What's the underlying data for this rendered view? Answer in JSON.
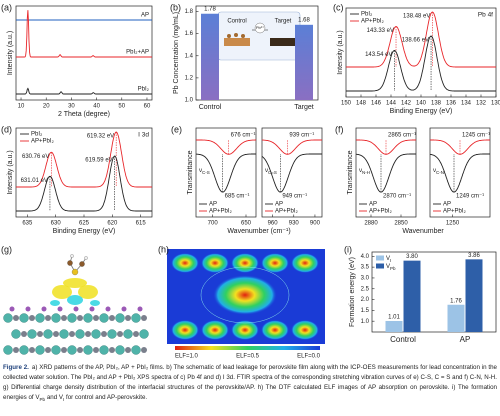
{
  "panels": {
    "a": {
      "letter": "(a)",
      "type": "xrd",
      "xlabel": "2 Theta (degree)",
      "ylabel": "Intensity (a.u.)",
      "xlim": [
        8,
        62
      ],
      "xticks": [
        10,
        20,
        30,
        40,
        50,
        60
      ],
      "traces": [
        {
          "name": "AP",
          "color": "#1f5fbf",
          "peaks": [],
          "heights": []
        },
        {
          "name": "PbI₂+AP",
          "color": "#e8262a",
          "peaks": [
            12.7,
            25.5,
            38.6
          ],
          "heights": [
            100,
            5,
            3
          ]
        },
        {
          "name": "PbI₂",
          "color": "#222222",
          "peaks": [
            12.7,
            25.9,
            38.7
          ],
          "heights": [
            12,
            5,
            3
          ]
        }
      ]
    },
    "b": {
      "letter": "(b)",
      "type": "bar",
      "ylabel": "Pb Concentration (mg/mL)",
      "categories": [
        "Control",
        "Target"
      ],
      "values": [
        1.78,
        1.68
      ],
      "ylim": [
        1.0,
        1.85
      ],
      "yticks": [
        {
          "value": 1,
          "label": "1.0"
        },
        1.2,
        1.4,
        1.6,
        1.8
      ],
      "inset": {
        "left": "Control",
        "ion": "Pb²⁺",
        "right": "Target"
      }
    },
    "c": {
      "letter": "(c)",
      "type": "xps",
      "tag": "Pb 4f",
      "xlabel": "Binding Energy (eV)",
      "ylabel": "Intensity (a.u.)",
      "xlim": [
        150,
        130
      ],
      "xticks": [
        150,
        148,
        146,
        144,
        142,
        140,
        138,
        136,
        134,
        132,
        130
      ],
      "traces": [
        {
          "name": "AP+PbI₂",
          "color": "#e8262a",
          "peaks": [
            143.33,
            138.48
          ],
          "heights": [
            70,
            95
          ],
          "peak_labels": [
            "143.33 eV",
            "138.48 eV"
          ]
        },
        {
          "name": "PbI₂",
          "color": "#222222",
          "peaks": [
            143.54,
            138.66
          ],
          "heights": [
            70,
            95
          ],
          "peak_labels": [
            "143.54 eV",
            "138.66 eV"
          ]
        }
      ]
    },
    "d": {
      "letter": "(d)",
      "type": "xps",
      "tag": "I 3d",
      "xlabel": "Binding Energy (eV)",
      "ylabel": "Intensity (a.u.)",
      "xlim": [
        637,
        613
      ],
      "xticks": [
        635,
        630,
        625,
        620,
        615
      ],
      "traces": [
        {
          "name": "AP+PbI₂",
          "color": "#e8262a",
          "peaks": [
            630.76,
            619.32
          ],
          "heights": [
            60,
            95
          ],
          "peak_labels": [
            "630.76 eV",
            "619.32 eV"
          ]
        },
        {
          "name": "PbI₂",
          "color": "#222222",
          "peaks": [
            631.01,
            619.59
          ],
          "heights": [
            60,
            95
          ],
          "peak_labels": [
            "631.01 eV",
            "619.59 eV"
          ]
        }
      ]
    },
    "e": {
      "letter": "(e)",
      "type": "ftir",
      "ylabel": "Transmittance",
      "xlabel": "Wavenumber (cm⁻¹)",
      "plots": [
        {
          "xlim": [
            725,
            635
          ],
          "xticks": [
            700,
            650
          ],
          "mode": "ν",
          "mode_sub": "C-S",
          "traces": [
            {
              "name": "AP+PbI₂",
              "color": "#e8262a",
              "peaks": [
                676
              ],
              "heights": [
                15
              ],
              "peak_labels": [
                "676 cm⁻¹"
              ]
            },
            {
              "name": "AP",
              "color": "#222222",
              "peaks": [
                685
              ],
              "heights": [
                40
              ],
              "peak_labels": [
                "685 cm⁻¹"
              ]
            }
          ]
        },
        {
          "xlim": [
            975,
            890
          ],
          "xticks": [
            960,
            930,
            900
          ],
          "mode": "ν",
          "mode_sub": "C=S",
          "traces": [
            {
              "name": "AP+PbI₂",
              "color": "#e8262a",
              "peaks": [
                939
              ],
              "heights": [
                15
              ],
              "peak_labels": [
                "939 cm⁻¹"
              ]
            },
            {
              "name": "AP",
              "color": "#222222",
              "peaks": [
                949
              ],
              "heights": [
                40
              ],
              "peak_labels": [
                "949 cm⁻¹"
              ]
            }
          ]
        }
      ]
    },
    "f": {
      "letter": "(f)",
      "type": "ftir",
      "ylabel": "Transmittance",
      "xlabel": "Wavenumber",
      "plots": [
        {
          "xlim": [
            2895,
            2835
          ],
          "xticks": [
            2880,
            2850
          ],
          "mode": "ν",
          "mode_sub": "N-H",
          "traces": [
            {
              "name": "AP+PbI₂",
              "color": "#e8262a",
              "peaks": [
                2865
              ],
              "heights": [
                15
              ],
              "peak_labels": [
                "2865 cm⁻¹"
              ]
            },
            {
              "name": "AP",
              "color": "#222222",
              "peaks": [
                2870
              ],
              "heights": [
                40
              ],
              "peak_labels": [
                "2870 cm⁻¹"
              ]
            }
          ]
        },
        {
          "xlim": [
            1265,
            1225
          ],
          "xticks": [
            1250
          ],
          "mode": "ν",
          "mode_sub": "C-N",
          "traces": [
            {
              "name": "AP+PbI₂",
              "color": "#e8262a",
              "peaks": [
                1245
              ],
              "heights": [
                15
              ],
              "peak_labels": [
                "1245 cm⁻¹"
              ]
            },
            {
              "name": "AP",
              "color": "#222222",
              "peaks": [
                1249
              ],
              "heights": [
                40
              ],
              "peak_labels": [
                "1249 cm⁻¹"
              ]
            }
          ]
        }
      ]
    },
    "g": {
      "letter": "(g)"
    },
    "h": {
      "letter": "(h)",
      "scale": [
        "ELF=1.0",
        "ELF=0.5",
        "ELF=0.0"
      ]
    },
    "i": {
      "letter": "(i)",
      "type": "grouped_bar",
      "ylabel": "Formation energy (eV)",
      "categories": [
        "Control",
        "AP"
      ],
      "ylim": [
        0.5,
        4.2
      ],
      "yticks": [
        {
          "value": 1,
          "label": "1.0"
        },
        1.5,
        {
          "value": 2,
          "label": "2.0"
        },
        2.5,
        {
          "value": 3,
          "label": "3.0"
        },
        3.5,
        {
          "value": 4,
          "label": "4.0"
        }
      ],
      "series": [
        {
          "name": "V",
          "subscript": "I",
          "color": "#9cc3e6",
          "values": [
            1.01,
            1.76
          ],
          "value_labels": [
            "1.01",
            "1.76"
          ]
        },
        {
          "name": "V",
          "subscript": "Pb",
          "color": "#2e5fa8",
          "values": [
            3.8,
            3.86
          ],
          "value_labels": [
            "3.80",
            "3.86"
          ]
        }
      ]
    }
  },
  "caption": {
    "label": "Figure 2.",
    "segments": [
      "a) XRD patterns of the AP, PbI₂, AP + PbI₂ films. b) The schematic of lead leakage for perovskite film along with the ICP-OES measurements for lead concentration in the collected water solution. The PbI₂ and AP + PbI₂ XPS spectra of c) Pb 4f and d) I 3d. FTIR spectra of the corresponding stretching vibration curves of e) C-S, C = S and f) C-N, N-H. g) Differential charge density distribution of the interfacial structures of the perovskite/AP. h) The DTF calculated ELF images of AP absorption on perovskite. i) The formation energies of V",
      "Pb",
      " and V",
      "I",
      " for control and AP-perovskite."
    ]
  }
}
